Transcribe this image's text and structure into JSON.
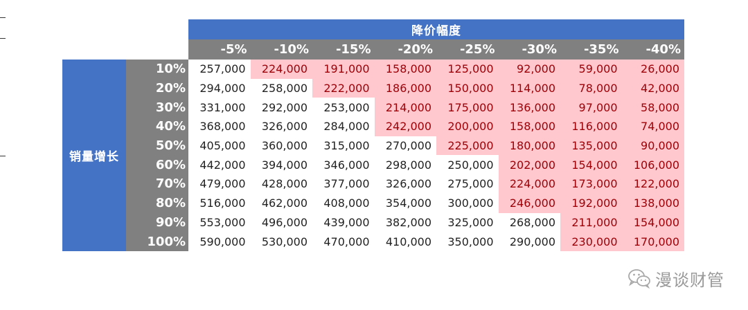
{
  "table": {
    "column_group_title": "降价幅度",
    "row_group_title": "销量增长",
    "columns": [
      "-5%",
      "-10%",
      "-15%",
      "-20%",
      "-25%",
      "-30%",
      "-35%",
      "-40%"
    ],
    "rows": [
      {
        "label": "10%",
        "values": [
          "257,000",
          "224,000",
          "191,000",
          "158,000",
          "125,000",
          "92,000",
          "59,000",
          "26,000"
        ],
        "highlight": [
          false,
          true,
          true,
          true,
          true,
          true,
          true,
          true
        ]
      },
      {
        "label": "20%",
        "values": [
          "294,000",
          "258,000",
          "222,000",
          "186,000",
          "150,000",
          "114,000",
          "78,000",
          "42,000"
        ],
        "highlight": [
          false,
          false,
          true,
          true,
          true,
          true,
          true,
          true
        ]
      },
      {
        "label": "30%",
        "values": [
          "331,000",
          "292,000",
          "253,000",
          "214,000",
          "175,000",
          "136,000",
          "97,000",
          "58,000"
        ],
        "highlight": [
          false,
          false,
          false,
          true,
          true,
          true,
          true,
          true
        ]
      },
      {
        "label": "40%",
        "values": [
          "368,000",
          "326,000",
          "284,000",
          "242,000",
          "200,000",
          "158,000",
          "116,000",
          "74,000"
        ],
        "highlight": [
          false,
          false,
          false,
          true,
          true,
          true,
          true,
          true
        ]
      },
      {
        "label": "50%",
        "values": [
          "405,000",
          "360,000",
          "315,000",
          "270,000",
          "225,000",
          "180,000",
          "135,000",
          "90,000"
        ],
        "highlight": [
          false,
          false,
          false,
          false,
          true,
          true,
          true,
          true
        ]
      },
      {
        "label": "60%",
        "values": [
          "442,000",
          "394,000",
          "346,000",
          "298,000",
          "250,000",
          "202,000",
          "154,000",
          "106,000"
        ],
        "highlight": [
          false,
          false,
          false,
          false,
          false,
          true,
          true,
          true
        ]
      },
      {
        "label": "70%",
        "values": [
          "479,000",
          "428,000",
          "377,000",
          "326,000",
          "275,000",
          "224,000",
          "173,000",
          "122,000"
        ],
        "highlight": [
          false,
          false,
          false,
          false,
          false,
          true,
          true,
          true
        ]
      },
      {
        "label": "80%",
        "values": [
          "516,000",
          "462,000",
          "408,000",
          "354,000",
          "300,000",
          "246,000",
          "192,000",
          "138,000"
        ],
        "highlight": [
          false,
          false,
          false,
          false,
          false,
          true,
          true,
          true
        ]
      },
      {
        "label": "90%",
        "values": [
          "553,000",
          "496,000",
          "439,000",
          "382,000",
          "325,000",
          "268,000",
          "211,000",
          "154,000"
        ],
        "highlight": [
          false,
          false,
          false,
          false,
          false,
          false,
          true,
          true
        ]
      },
      {
        "label": "100%",
        "values": [
          "590,000",
          "530,000",
          "470,000",
          "410,000",
          "350,000",
          "290,000",
          "230,000",
          "170,000"
        ],
        "highlight": [
          false,
          false,
          false,
          false,
          false,
          false,
          true,
          true
        ]
      }
    ]
  },
  "watermark": {
    "text": "漫谈财管",
    "icon": "wechat-logo-icon"
  },
  "colors": {
    "header_blue": "#4472C4",
    "header_gray": "#808080",
    "highlight_fill": "#FFC7CE",
    "highlight_text": "#9C0006",
    "normal_text": "#222222",
    "watermark": "#9a9a9a"
  }
}
